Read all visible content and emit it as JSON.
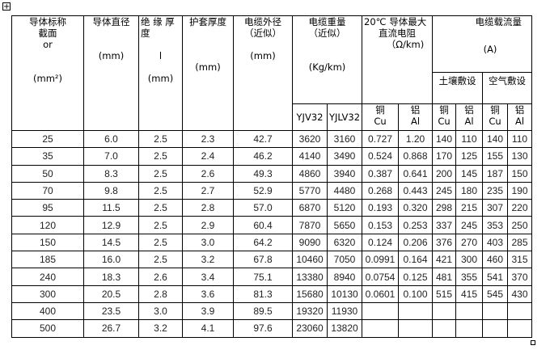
{
  "header": {
    "c1": {
      "l1": "导体标称",
      "l2": "截面",
      "l3": "or",
      "unit": "(mm²)"
    },
    "c2": {
      "l1": "导体直径",
      "unit": "(mm)"
    },
    "c3": {
      "l1": "绝 缘 厚",
      "l2": "度",
      "l3": "l",
      "unit": "(mm)"
    },
    "c4": {
      "l1": "护套厚度",
      "unit": "(mm)"
    },
    "c5": {
      "l1": "电缆外径",
      "l2": "（近似）",
      "unit": "(mm)"
    },
    "c6": {
      "l1": "电缆重量",
      "l2": "（近似）",
      "unit": "(Kg/km)"
    },
    "c7": {
      "l1": "20℃ 导体最大",
      "l2": "直流电阻",
      "unit": "（Ω/km)"
    },
    "c8": {
      "l1": "电缆载流量",
      "unit": "(A)",
      "soil": "土壤敷设",
      "air": "空气敷设"
    },
    "sub": [
      "YJV32",
      "YJLV32",
      "铜",
      "Cu",
      "铝",
      "Al"
    ]
  },
  "rows": [
    [
      "25",
      "6.0",
      "2.5",
      "2.3",
      "42.7",
      "3620",
      "3160",
      "0.727",
      "1.20",
      "140",
      "110",
      "140",
      "110"
    ],
    [
      "35",
      "7.0",
      "2.5",
      "2.4",
      "46.2",
      "4140",
      "3490",
      "0.524",
      "0.868",
      "170",
      "125",
      "155",
      "130"
    ],
    [
      "50",
      "8.3",
      "2.5",
      "2.6",
      "49.3",
      "4860",
      "3940",
      "0.387",
      "0.641",
      "200",
      "145",
      "187",
      "150"
    ],
    [
      "70",
      "9.8",
      "2.5",
      "2.7",
      "52.9",
      "5770",
      "4480",
      "0.268",
      "0.443",
      "245",
      "180",
      "235",
      "190"
    ],
    [
      "95",
      "11.5",
      "2.5",
      "2.8",
      "57.0",
      "6870",
      "5120",
      "0.193",
      "0.320",
      "298",
      "215",
      "307",
      "220"
    ],
    [
      "120",
      "12.9",
      "2.5",
      "2.9",
      "60.4",
      "7870",
      "5650",
      "0.153",
      "0.253",
      "337",
      "245",
      "353",
      "250"
    ],
    [
      "150",
      "14.5",
      "2.5",
      "3.0",
      "64.2",
      "9090",
      "6320",
      "0.124",
      "0.206",
      "376",
      "270",
      "403",
      "285"
    ],
    [
      "185",
      "16.0",
      "2.5",
      "3.2",
      "67.8",
      "10460",
      "7050",
      "0.0991",
      "0.164",
      "421",
      "300",
      "460",
      "315"
    ],
    [
      "240",
      "18.3",
      "2.6",
      "3.4",
      "75.1",
      "13380",
      "8940",
      "0.0754",
      "0.125",
      "481",
      "355",
      "541",
      "370"
    ],
    [
      "300",
      "20.5",
      "2.8",
      "3.6",
      "81.3",
      "15680",
      "10130",
      "0.0601",
      "0.100",
      "515",
      "415",
      "545",
      "430"
    ],
    [
      "400",
      "23.5",
      "3.0",
      "3.9",
      "89.5",
      "19320",
      "11930",
      "",
      "",
      "",
      "",
      "",
      ""
    ],
    [
      "500",
      "26.7",
      "3.2",
      "4.1",
      "97.6",
      "23060",
      "13820",
      "",
      "",
      "",
      "",
      "",
      ""
    ]
  ]
}
